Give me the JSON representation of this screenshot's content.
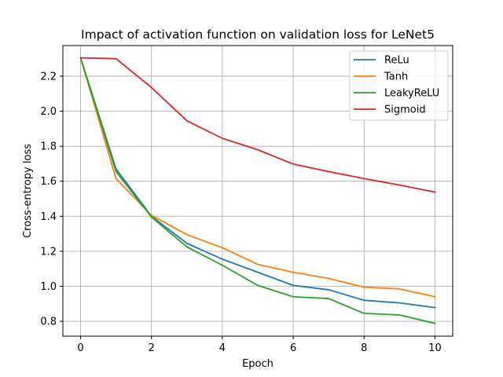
{
  "chart_data": {
    "type": "line",
    "title": "Impact of activation function on validation loss for LeNet5",
    "xlabel": "Epoch",
    "ylabel": "Cross-entropy loss",
    "x": [
      0,
      1,
      2,
      3,
      4,
      5,
      6,
      7,
      8,
      9,
      10
    ],
    "xlim": [
      -0.5,
      10.5
    ],
    "ylim": [
      0.715,
      2.375
    ],
    "xticks": [
      0,
      2,
      4,
      6,
      8,
      10
    ],
    "yticks": [
      0.8,
      1.0,
      1.2,
      1.4,
      1.6,
      1.8,
      2.0,
      2.2
    ],
    "xtick_labels": [
      "0",
      "2",
      "4",
      "6",
      "8",
      "10"
    ],
    "ytick_labels": [
      "0.8",
      "1.0",
      "1.2",
      "1.4",
      "1.6",
      "1.8",
      "2.0",
      "2.2"
    ],
    "grid": true,
    "legend_position": "top-right",
    "series": [
      {
        "name": "ReLu",
        "color": "#1f77b4",
        "values": [
          2.305,
          1.67,
          1.4,
          1.245,
          1.155,
          1.08,
          1.005,
          0.98,
          0.92,
          0.905,
          0.878
        ]
      },
      {
        "name": "Tanh",
        "color": "#ff7f0e",
        "values": [
          2.305,
          1.615,
          1.405,
          1.295,
          1.22,
          1.125,
          1.08,
          1.045,
          0.995,
          0.985,
          0.94
        ]
      },
      {
        "name": "LeakyReLU",
        "color": "#2ca02c",
        "values": [
          2.305,
          1.655,
          1.395,
          1.225,
          1.12,
          1.005,
          0.94,
          0.93,
          0.845,
          0.836,
          0.788
        ]
      },
      {
        "name": "Sigmoid",
        "color": "#d62728",
        "values": [
          2.305,
          2.3,
          2.135,
          1.945,
          1.845,
          1.78,
          1.698,
          1.655,
          1.615,
          1.578,
          1.538
        ]
      }
    ]
  }
}
